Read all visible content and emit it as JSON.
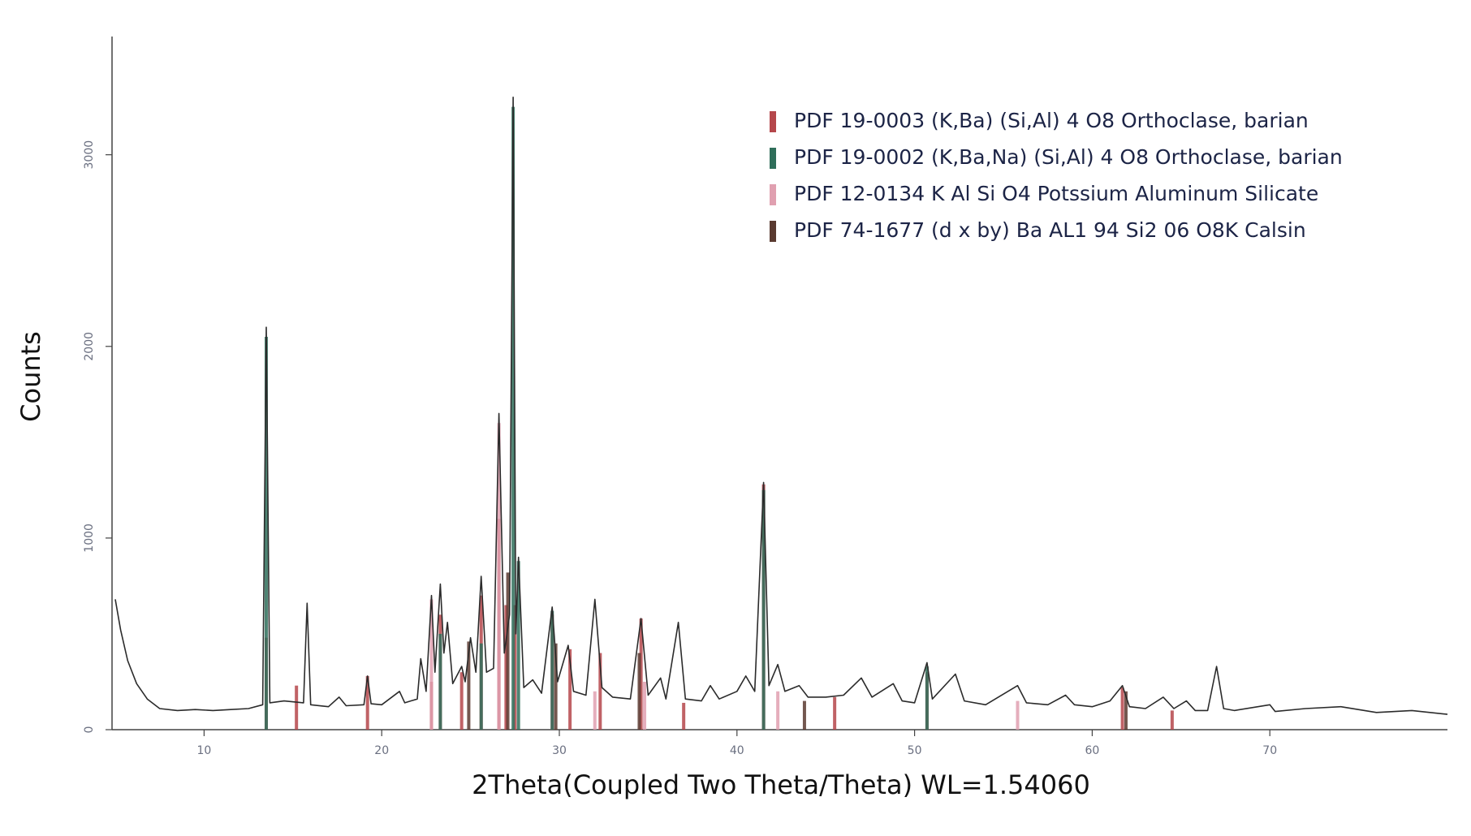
{
  "chart_data": {
    "type": "xrd",
    "xlabel": "2Theta(Coupled Two Theta/Theta) WL=1.54060",
    "ylabel": "Counts",
    "xlim": [
      5,
      80
    ],
    "ylim": [
      0,
      3600
    ],
    "xticks": [
      10,
      20,
      30,
      40,
      50,
      60,
      70
    ],
    "yticks": [
      0,
      1000,
      2000,
      3000
    ],
    "legend": "upper right",
    "pattern": {
      "color": "#2b2b2b",
      "x": [
        5.0,
        5.3,
        5.7,
        6.2,
        6.8,
        7.5,
        8.5,
        9.5,
        10.5,
        11.5,
        12.5,
        13.3,
        13.5,
        13.7,
        14.5,
        15.6,
        15.8,
        16.0,
        17.0,
        17.6,
        18.0,
        19.0,
        19.2,
        19.4,
        20.0,
        21.0,
        21.3,
        22.0,
        22.2,
        22.5,
        22.8,
        23.0,
        23.3,
        23.5,
        23.7,
        24.0,
        24.5,
        24.7,
        25.0,
        25.3,
        25.6,
        25.9,
        26.3,
        26.6,
        26.9,
        27.2,
        27.4,
        27.55,
        27.7,
        28.0,
        28.5,
        29.0,
        29.6,
        29.9,
        30.5,
        30.8,
        31.5,
        32.0,
        32.4,
        33.0,
        34.0,
        34.6,
        35.0,
        35.7,
        36.0,
        36.7,
        37.1,
        38.0,
        38.5,
        39.0,
        40.0,
        40.5,
        41.0,
        41.5,
        41.8,
        42.3,
        42.7,
        43.5,
        44.0,
        45.0,
        46.0,
        47.0,
        47.6,
        48.8,
        49.3,
        50.0,
        50.7,
        51.0,
        52.3,
        52.8,
        54.0,
        55.8,
        56.3,
        57.5,
        58.5,
        59.0,
        60.0,
        61.0,
        61.7,
        62.1,
        63.0,
        64.0,
        64.6,
        65.3,
        65.8,
        66.5,
        67.0,
        67.4,
        68.0,
        70.0,
        70.3,
        72.0,
        74.0,
        76.0,
        78.0,
        80.0
      ],
      "values": [
        680,
        520,
        360,
        240,
        160,
        110,
        100,
        105,
        100,
        105,
        110,
        130,
        2100,
        140,
        150,
        140,
        660,
        130,
        120,
        170,
        125,
        130,
        280,
        135,
        130,
        200,
        140,
        160,
        370,
        200,
        700,
        300,
        760,
        400,
        560,
        240,
        330,
        250,
        480,
        300,
        800,
        300,
        320,
        1650,
        400,
        600,
        3300,
        500,
        900,
        220,
        260,
        190,
        640,
        250,
        440,
        200,
        180,
        680,
        220,
        170,
        160,
        580,
        180,
        270,
        160,
        560,
        160,
        150,
        230,
        160,
        200,
        280,
        200,
        1290,
        230,
        340,
        200,
        230,
        170,
        170,
        180,
        270,
        170,
        240,
        150,
        140,
        350,
        160,
        290,
        150,
        130,
        230,
        140,
        130,
        180,
        130,
        120,
        150,
        230,
        120,
        110,
        170,
        110,
        150,
        100,
        100,
        330,
        110,
        100,
        130,
        95,
        110,
        120,
        90,
        100,
        80
      ]
    },
    "series": [
      {
        "name": "PDF  19-0003 (K,Ba) (Si,Al) 4 O8 Orthoclase, barian",
        "color": "#b5474b",
        "x": [
          13.5,
          15.2,
          19.2,
          22.8,
          23.3,
          24.5,
          25.6,
          26.6,
          27.0,
          27.5,
          29.6,
          30.6,
          32.3,
          34.6,
          37.0,
          41.5,
          45.5,
          50.7,
          61.7,
          64.5
        ],
        "values": [
          480,
          230,
          280,
          250,
          600,
          300,
          700,
          1100,
          650,
          650,
          600,
          420,
          400,
          580,
          140,
          1280,
          170,
          300,
          220,
          100
        ]
      },
      {
        "name": "PDF  19-0002 (K,Ba,Na) (Si,Al) 4 O8 Orthoclase, barian",
        "color": "#2f6e5a",
        "x": [
          13.5,
          23.3,
          25.6,
          27.4,
          27.7,
          29.6,
          41.5,
          50.7
        ],
        "values": [
          2050,
          500,
          450,
          3250,
          880,
          620,
          1250,
          330
        ]
      },
      {
        "name": "PDF  12-0134 K Al Si O4 Potssium Aluminum Silicate",
        "color": "#e0a0b0",
        "x": [
          22.8,
          26.6,
          32.0,
          34.8,
          42.3,
          55.8
        ],
        "values": [
          680,
          1600,
          200,
          250,
          200,
          150
        ]
      },
      {
        "name": "PDF  74-1677 (d x by) Ba AL1 94 Si2 06 O8K Calsin",
        "color": "#5a3a30",
        "x": [
          24.9,
          27.1,
          29.8,
          34.5,
          43.8,
          61.9
        ],
        "values": [
          460,
          820,
          450,
          400,
          150,
          200
        ]
      }
    ]
  }
}
